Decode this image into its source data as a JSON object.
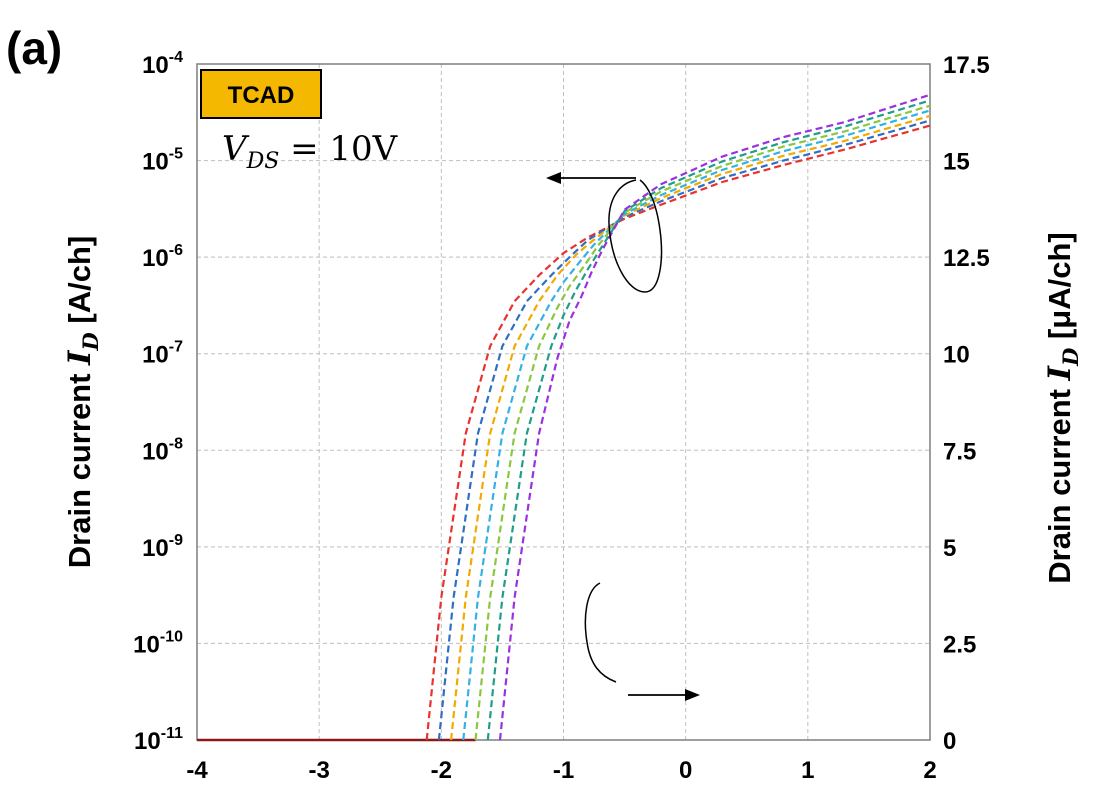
{
  "panel_label": "(a)",
  "badge": {
    "text": "TCAD",
    "color": "#F5B800"
  },
  "annotation": {
    "v": "V",
    "sub": "DS",
    "rest": " = 10V"
  },
  "colors": {
    "series": [
      "#E8322E",
      "#2E6FC4",
      "#F2A900",
      "#34B1E4",
      "#8CC63F",
      "#1E9E8A",
      "#9B30E0"
    ],
    "grid": "#BFBFBF",
    "baseline": "#8B1A1A"
  },
  "chart_data": {
    "type": "line",
    "xlabel": "",
    "ylabel_left": {
      "prefix": "Drain current ",
      "var": "I",
      "sub": "D",
      "unit": " [A/ch]"
    },
    "ylabel_right": {
      "prefix": "Drain current ",
      "var": "I",
      "sub": "D",
      "unit": " [μA/ch]"
    },
    "xlim": [
      -4,
      2
    ],
    "x_ticks": [
      "-4",
      "-3",
      "-2",
      "-1",
      "0",
      "1",
      "2"
    ],
    "y_left_scale": "log",
    "y_left_lim": [
      1e-11,
      0.0001
    ],
    "y_left_ticks": [
      {
        "base": "10",
        "exp": "-4"
      },
      {
        "base": "10",
        "exp": "-5"
      },
      {
        "base": "10",
        "exp": "-6"
      },
      {
        "base": "10",
        "exp": "-7"
      },
      {
        "base": "10",
        "exp": "-8"
      },
      {
        "base": "10",
        "exp": "-9"
      },
      {
        "base": "10",
        "exp": "-10"
      },
      {
        "base": "10",
        "exp": "-11"
      }
    ],
    "y_right_lim": [
      0,
      17.5
    ],
    "y_right_ticks": [
      "17.5",
      "15",
      "12.5",
      "10",
      "7.5",
      "5",
      "2.5",
      "0"
    ],
    "grid": true,
    "series_log": [
      {
        "x": [
          -2.12,
          -2.0,
          -1.8,
          -1.6,
          -1.4,
          -1.2,
          -1.0,
          -0.8,
          -0.5,
          -0.2,
          0.3,
          0.8,
          1.3,
          2.0
        ],
        "y": [
          1e-11,
          3e-10,
          1.5e-08,
          1.2e-07,
          3.5e-07,
          6.5e-07,
          1.1e-06,
          1.6e-06,
          2.5e-06,
          3.5e-06,
          6e-06,
          9e-06,
          1.3e-05,
          2.3e-05
        ]
      },
      {
        "x": [
          -2.02,
          -1.9,
          -1.7,
          -1.5,
          -1.3,
          -1.1,
          -0.95,
          -0.8,
          -0.5,
          -0.2,
          0.3,
          0.8,
          1.3,
          2.0
        ],
        "y": [
          1e-11,
          3e-10,
          1.5e-08,
          1.2e-07,
          3.5e-07,
          6.5e-07,
          1e-06,
          1.5e-06,
          2.6e-06,
          3.8e-06,
          6.6e-06,
          1e-05,
          1.45e-05,
          2.6e-05
        ]
      },
      {
        "x": [
          -1.92,
          -1.8,
          -1.6,
          -1.4,
          -1.2,
          -1.05,
          -0.9,
          -0.8,
          -0.5,
          -0.2,
          0.3,
          0.8,
          1.3,
          2.0
        ],
        "y": [
          1e-11,
          3e-10,
          1.5e-08,
          1.2e-07,
          3.5e-07,
          6.5e-07,
          1.05e-06,
          1.35e-06,
          2.7e-06,
          4.1e-06,
          7.3e-06,
          1.12e-05,
          1.6e-05,
          2.9e-05
        ]
      },
      {
        "x": [
          -1.82,
          -1.7,
          -1.5,
          -1.3,
          -1.1,
          -1.0,
          -0.85,
          -0.75,
          -0.5,
          -0.2,
          0.3,
          0.8,
          1.3,
          2.0
        ],
        "y": [
          1e-11,
          3e-10,
          1.5e-08,
          1.2e-07,
          3.5e-07,
          5.5e-07,
          9.5e-07,
          1.35e-06,
          2.8e-06,
          4.4e-06,
          8e-06,
          1.25e-05,
          1.8e-05,
          3.3e-05
        ]
      },
      {
        "x": [
          -1.72,
          -1.6,
          -1.4,
          -1.2,
          -1.05,
          -0.95,
          -0.82,
          -0.72,
          -0.5,
          -0.2,
          0.3,
          0.8,
          1.3,
          2.0
        ],
        "y": [
          1e-11,
          3e-10,
          1.5e-08,
          1.2e-07,
          3e-07,
          5e-07,
          8.5e-07,
          1.3e-06,
          2.9e-06,
          4.8e-06,
          8.8e-06,
          1.4e-05,
          2e-05,
          3.7e-05
        ]
      },
      {
        "x": [
          -1.62,
          -1.5,
          -1.3,
          -1.1,
          -1.0,
          -0.9,
          -0.8,
          -0.7,
          -0.5,
          -0.2,
          0.3,
          0.8,
          1.3,
          2.0
        ],
        "y": [
          1e-11,
          3e-10,
          1.5e-08,
          1.2e-07,
          2.5e-07,
          4.5e-07,
          7.5e-07,
          1.2e-06,
          3e-06,
          5.2e-06,
          9.8e-06,
          1.55e-05,
          2.25e-05,
          4.2e-05
        ]
      },
      {
        "x": [
          -1.52,
          -1.4,
          -1.2,
          -1.05,
          -0.95,
          -0.85,
          -0.77,
          -0.68,
          -0.5,
          -0.2,
          0.3,
          0.8,
          1.3,
          2.0
        ],
        "y": [
          1e-11,
          3e-10,
          1.5e-08,
          9e-08,
          2.2e-07,
          4e-07,
          7e-07,
          1.2e-06,
          3.1e-06,
          5.7e-06,
          1.1e-05,
          1.75e-05,
          2.5e-05,
          4.8e-05
        ]
      }
    ],
    "baseline": {
      "x": [
        -4,
        -1.72
      ],
      "y": [
        1e-11,
        1e-11
      ]
    }
  }
}
